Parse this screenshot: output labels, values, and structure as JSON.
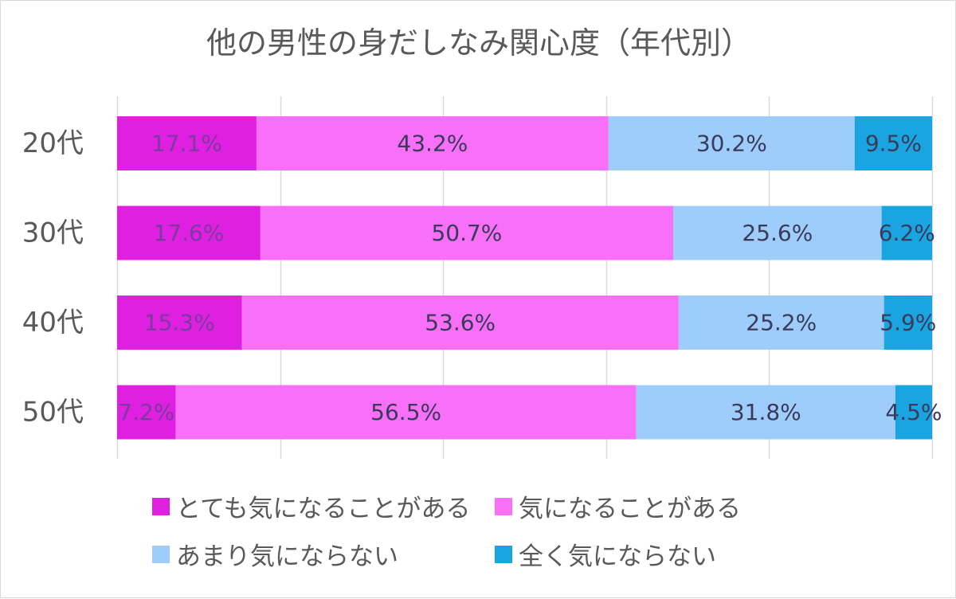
{
  "chart_data": {
    "type": "bar",
    "orientation": "horizontal",
    "stacked": "percent",
    "title": "他の男性の身だしなみ関心度（年代別）",
    "categories": [
      "20代",
      "30代",
      "40代",
      "50代"
    ],
    "series": [
      {
        "name": "とても気になることがある",
        "color": "#e020e0",
        "values": [
          17.1,
          17.6,
          15.3,
          7.2
        ],
        "labels": [
          "17.1%",
          "17.6%",
          "15.3%",
          "7.2%"
        ]
      },
      {
        "name": "気になることがある",
        "color": "#f86ff8",
        "values": [
          43.2,
          50.7,
          53.6,
          56.5
        ],
        "labels": [
          "43.2%",
          "50.7%",
          "53.6%",
          "56.5%"
        ]
      },
      {
        "name": "あまり気にならない",
        "color": "#9fcdfb",
        "values": [
          30.2,
          25.6,
          25.2,
          31.8
        ],
        "labels": [
          "30.2%",
          "25.6%",
          "25.2%",
          "31.8%"
        ]
      },
      {
        "name": "全く気にならない",
        "color": "#1aa5e0",
        "values": [
          9.5,
          6.2,
          5.9,
          4.5
        ],
        "labels": [
          "9.5%",
          "6.2%",
          "5.9%",
          "4.5%"
        ]
      }
    ],
    "xlim": [
      0,
      100
    ],
    "grid": true,
    "legend_position": "bottom"
  }
}
